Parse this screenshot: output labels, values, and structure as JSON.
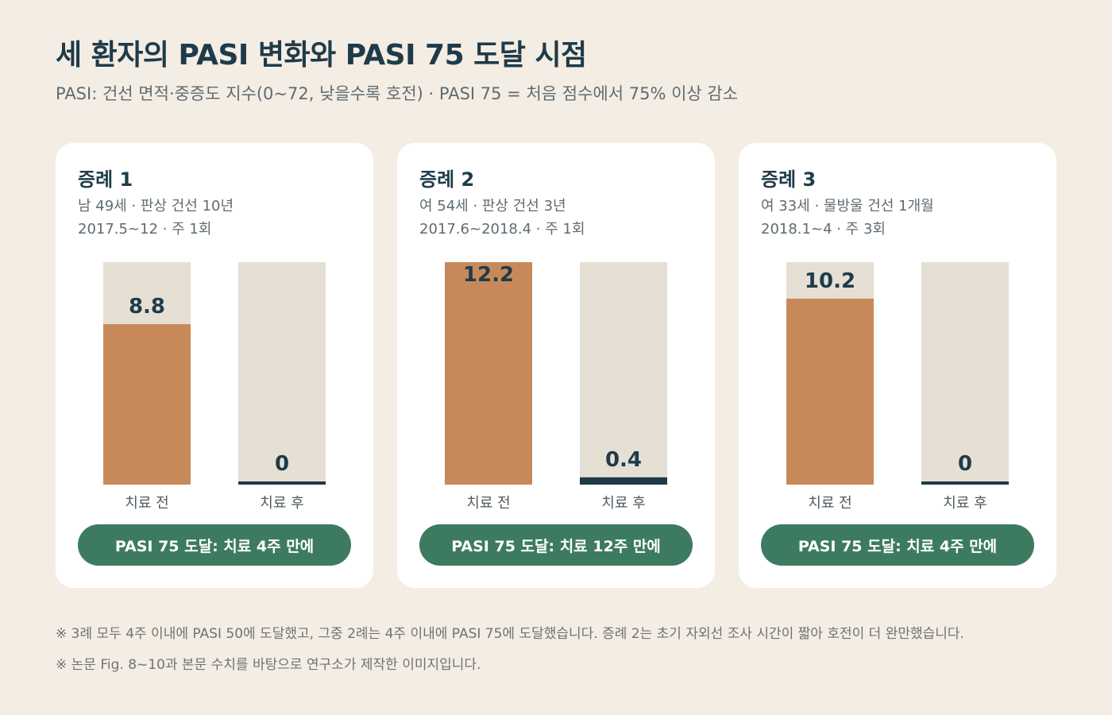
{
  "title": "세 환자의 PASI 변화와 PASI 75 도달 시점",
  "subtitle": "PASI: 건선 면적·중증도 지수(0~72, 낮을수록 호전) · PASI 75 = 처음 점수에서 75% 이상 감소",
  "colors": {
    "before": "#c8895a",
    "after": "#1f3a48",
    "track": "#e5dfd4",
    "badge": "#3d7b61",
    "background": "#f4ede3"
  },
  "chart_data": [
    {
      "type": "bar",
      "title": "증례 1",
      "meta_line1": "남 49세 · 판상 건선 10년",
      "meta_line2": "2017.5~12 · 주 1회",
      "categories": [
        "치료 전",
        "치료 후"
      ],
      "values": [
        8.8,
        0
      ],
      "value_labels": [
        "8.8",
        "0"
      ],
      "ylim": [
        0,
        12.2
      ],
      "badge": "PASI 75 도달: 치료 4주 만에"
    },
    {
      "type": "bar",
      "title": "증례 2",
      "meta_line1": "여 54세 · 판상 건선 3년",
      "meta_line2": "2017.6~2018.4 · 주 1회",
      "categories": [
        "치료 전",
        "치료 후"
      ],
      "values": [
        12.2,
        0.4
      ],
      "value_labels": [
        "12.2",
        "0.4"
      ],
      "ylim": [
        0,
        12.2
      ],
      "badge": "PASI 75 도달: 치료 12주 만에"
    },
    {
      "type": "bar",
      "title": "증례 3",
      "meta_line1": "여 33세 · 물방울 건선 1개월",
      "meta_line2": "2018.1~4 · 주 3회",
      "categories": [
        "치료 전",
        "치료 후"
      ],
      "values": [
        10.2,
        0
      ],
      "value_labels": [
        "10.2",
        "0"
      ],
      "ylim": [
        0,
        12.2
      ],
      "badge": "PASI 75 도달: 치료 4주 만에"
    }
  ],
  "notes": [
    "※ 3례 모두 4주 이내에 PASI 50에 도달했고, 그중 2례는 4주 이내에 PASI 75에 도달했습니다. 증례 2는 초기 자외선 조사 시간이 짧아 호전이 더 완만했습니다.",
    "※ 논문 Fig. 8~10과 본문 수치를 바탕으로 연구소가 제작한 이미지입니다."
  ]
}
